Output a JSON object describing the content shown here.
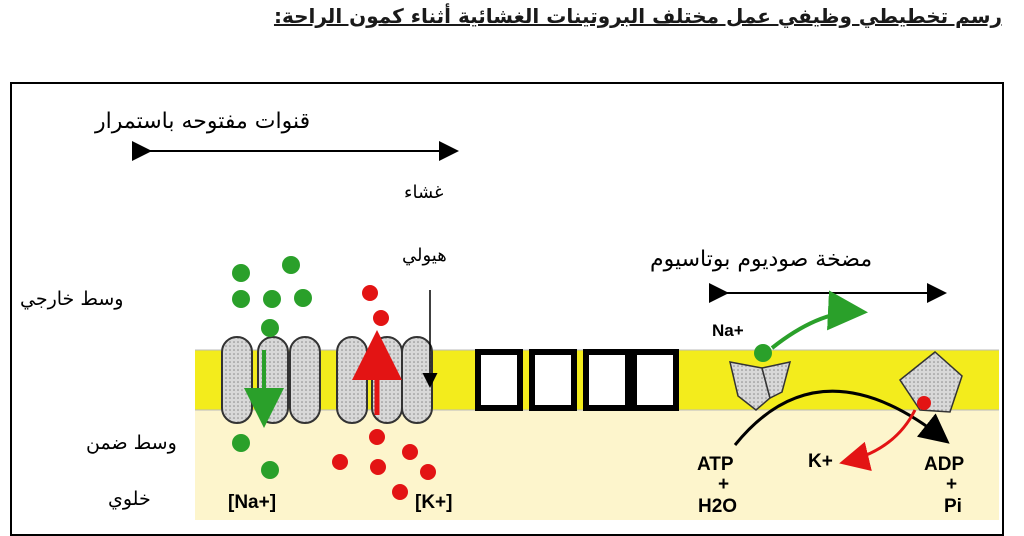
{
  "title": "رسم تخطيطي وظيفي عمل مختلف البروتينات الغشائية أثناء كمون الراحة:",
  "labels": {
    "channels": "قنوات مفتوحه باستمرار",
    "membrane": "غشاء",
    "cytoplasm": "هيولي",
    "pump": "مضخة صوديوم بوتاسيوم",
    "outside": "وسط خارجي",
    "inside_1": "وسط ضمن",
    "inside_2": "خلوي"
  },
  "ions": {
    "na_pump": "Na+",
    "k_pump": "K+",
    "na_conc": "[Na+]",
    "k_conc": "[K+]",
    "atp": "ATP",
    "plus1": "+",
    "h2o": "H2O",
    "adp": "ADP",
    "plus2": "+",
    "pi": "Pi"
  },
  "colors": {
    "membrane": "#f3ec1c",
    "inside": "#fdf5cc",
    "sodium": "#2aa02a",
    "potassium": "#e31414",
    "pump": "#d8d8d8"
  }
}
